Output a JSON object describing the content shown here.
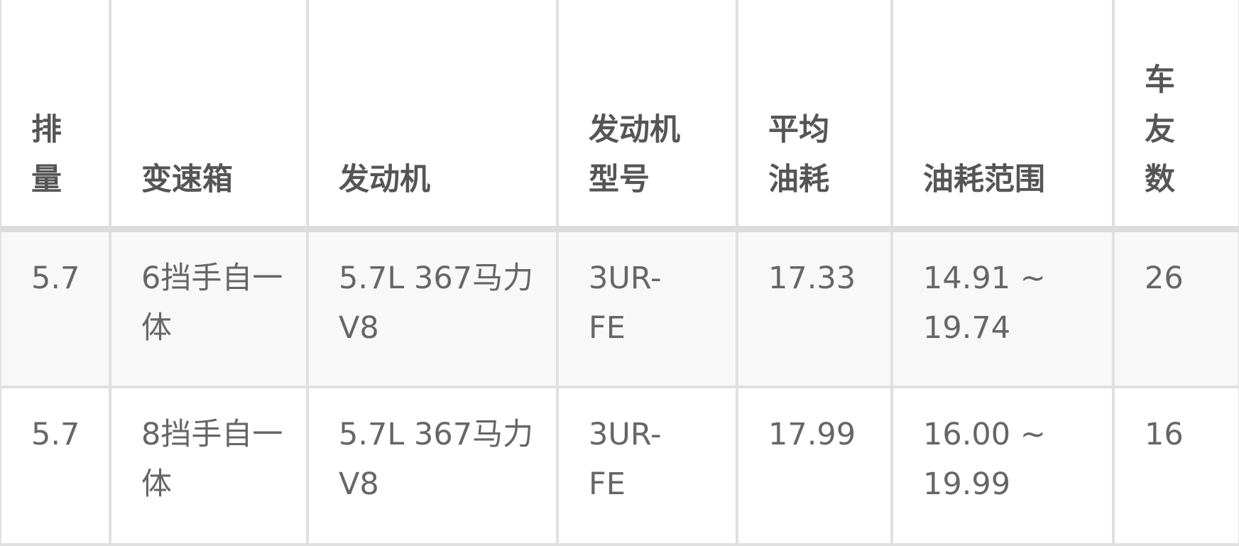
{
  "table": {
    "headers": [
      "排量",
      "变速箱",
      "发动机",
      "发动机型号",
      "平均油耗",
      "油耗范围",
      "车友数"
    ],
    "rows": [
      [
        "5.7",
        "6挡手自一体",
        "5.7L 367马力 V8",
        "3UR-FE",
        "17.33",
        "14.91 ~ 19.74",
        "26"
      ],
      [
        "5.7",
        "8挡手自一体",
        "5.7L 367马力 V8",
        "3UR-FE",
        "17.99",
        "16.00 ~ 19.99",
        "16"
      ]
    ]
  }
}
